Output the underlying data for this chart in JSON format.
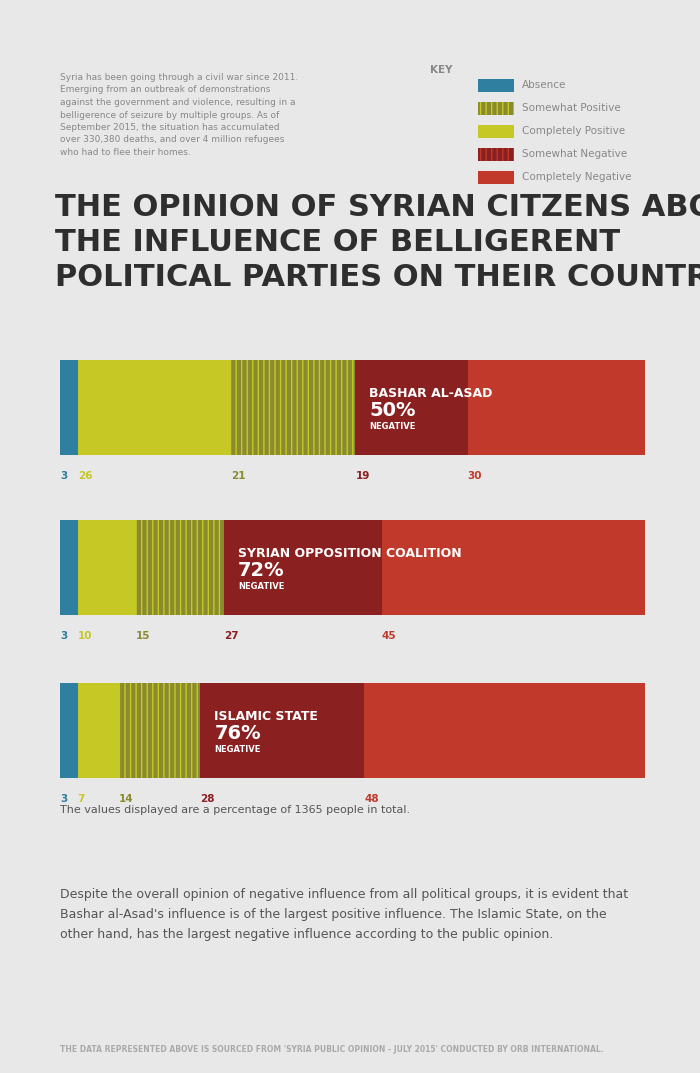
{
  "bg_color": "#e8e8e8",
  "title": "THE OPINION OF SYRIAN CITZENS ABOUT\nTHE INFLUENCE OF BELLIGERENT\nPOLITICAL PARTIES ON THEIR COUNTRY",
  "title_color": "#2e2e2e",
  "intro_text": "Syria has been going through a civil war since 2011.\nEmerging from an outbreak of demonstrations\nagainst the government and violence, resulting in a\nbelligerence of seizure by multiple groups. As of\nSeptember 2015, the situation has accumulated\nover 330,380 deaths, and over 4 million refugees\nwho had to flee their homes.",
  "key_label": "KEY",
  "legend_items": [
    {
      "label": "Absence",
      "color": "#2e7fa0",
      "hatch": null
    },
    {
      "label": "Somewhat Positive",
      "color": "#8a8a2e",
      "hatch": "|||"
    },
    {
      "label": "Completely Positive",
      "color": "#c5c825",
      "hatch": null
    },
    {
      "label": "Somewhat Negative",
      "color": "#8b2020",
      "hatch": "|||"
    },
    {
      "label": "Completely Negative",
      "color": "#c0392b",
      "hatch": null
    }
  ],
  "bars": [
    {
      "name": "BASHAR AL-ASAD",
      "pct": "50%",
      "label": "NEGATIVE",
      "segments": [
        3,
        26,
        21,
        19,
        30
      ],
      "tick_labels": [
        "3",
        "26",
        "21",
        "19",
        "30"
      ],
      "tick_colors": [
        "#2e7fa0",
        "#c5c825",
        "#8a8a2e",
        "#8b2020",
        "#c0392b"
      ]
    },
    {
      "name": "SYRIAN OPPOSITION COALITION",
      "pct": "72%",
      "label": "NEGATIVE",
      "segments": [
        3,
        10,
        15,
        27,
        45
      ],
      "tick_labels": [
        "3",
        "10",
        "15",
        "27",
        "45"
      ],
      "tick_colors": [
        "#2e7fa0",
        "#c5c825",
        "#8a8a2e",
        "#8b2020",
        "#c0392b"
      ]
    },
    {
      "name": "ISLAMIC STATE",
      "pct": "76%",
      "label": "NEGATIVE",
      "segments": [
        3,
        7,
        14,
        28,
        48
      ],
      "tick_labels": [
        "3",
        "7",
        "14",
        "28",
        "48"
      ],
      "tick_colors": [
        "#2e7fa0",
        "#c5c825",
        "#8a8a2e",
        "#8b2020",
        "#c0392b"
      ]
    }
  ],
  "seg_colors": [
    "#2e7fa0",
    "#c5c825",
    "#8a8a2e",
    "#8b2020",
    "#c0392b"
  ],
  "seg_hatches": [
    null,
    null,
    "|||",
    null,
    "|||"
  ],
  "footnote": "The values displayed are a percentage of 1365 people in total.",
  "conclusion": "Despite the overall opinion of negative influence from all political groups, it is evident that\nBashar al-Asad's influence is of the largest positive influence. The Islamic State, on the\nother hand, has the largest negative influence according to the public opinion.",
  "source": "THE DATA REPRESENTED ABOVE IS SOURCED FROM 'SYRIA PUBLIC OPINION - JULY 2015' CONDUCTED BY ORB INTERNATIONAL."
}
